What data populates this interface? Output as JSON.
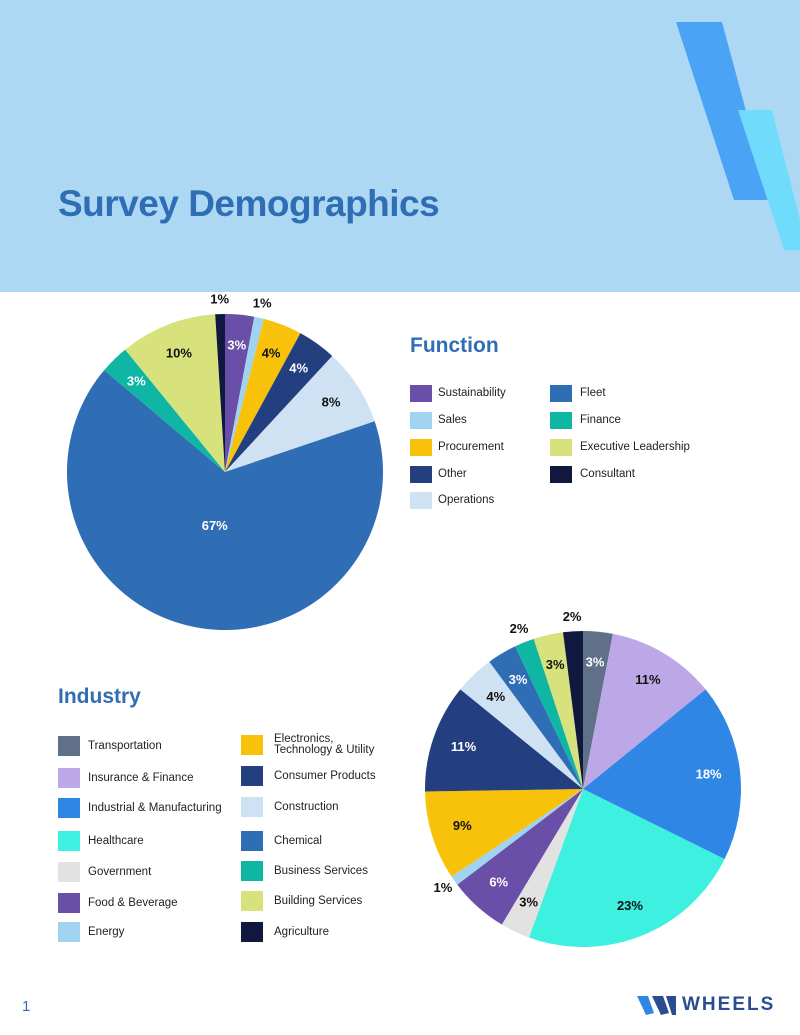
{
  "header": {
    "title": "Survey Demographics"
  },
  "chart_data": [
    {
      "type": "pie",
      "title": "Function",
      "categories": [
        "Sustainability",
        "Sales",
        "Procurement",
        "Other",
        "Operations",
        "Fleet",
        "Finance",
        "Executive Leadership",
        "Consultant"
      ],
      "values": [
        3,
        1,
        4,
        4,
        8,
        67,
        3,
        10,
        1
      ],
      "value_labels": [
        "3%",
        "1%",
        "4%",
        "4%",
        "8%",
        "67%",
        "3%",
        "10%",
        "1%"
      ],
      "colors": [
        "#6a4fa8",
        "#9fd3f0",
        "#f9c20a",
        "#233f80",
        "#cfe2f3",
        "#2f6db5",
        "#0fb6a4",
        "#d7e27c",
        "#101840"
      ]
    },
    {
      "type": "pie",
      "title": "Industry",
      "categories": [
        "Transportation",
        "Insurance & Finance",
        "Industrial & Manufacturing",
        "Healthcare",
        "Government",
        "Food & Beverage",
        "Energy",
        "Electronics, Technology & Utility",
        "Consumer Products",
        "Construction",
        "Chemical",
        "Business Services",
        "Building Services",
        "Agriculture"
      ],
      "values": [
        3,
        11,
        18,
        23,
        3,
        6,
        1,
        9,
        11,
        4,
        3,
        2,
        3,
        2
      ],
      "value_labels": [
        "3%",
        "11%",
        "18%",
        "23%",
        "3%",
        "6%",
        "1%",
        "9%",
        "11%",
        "4%",
        "3%",
        "2%",
        "3%",
        "2%"
      ],
      "colors": [
        "#5f7088",
        "#bca8e6",
        "#2f86e4",
        "#3df0e0",
        "#e2e2e2",
        "#6a4fa8",
        "#9fd3f0",
        "#f9c20a",
        "#233f80",
        "#cfe2f3",
        "#2f6db5",
        "#0fb6a4",
        "#d7e27c",
        "#101840"
      ]
    }
  ],
  "footer": {
    "page_number": "1",
    "logo": "WHEELS"
  }
}
